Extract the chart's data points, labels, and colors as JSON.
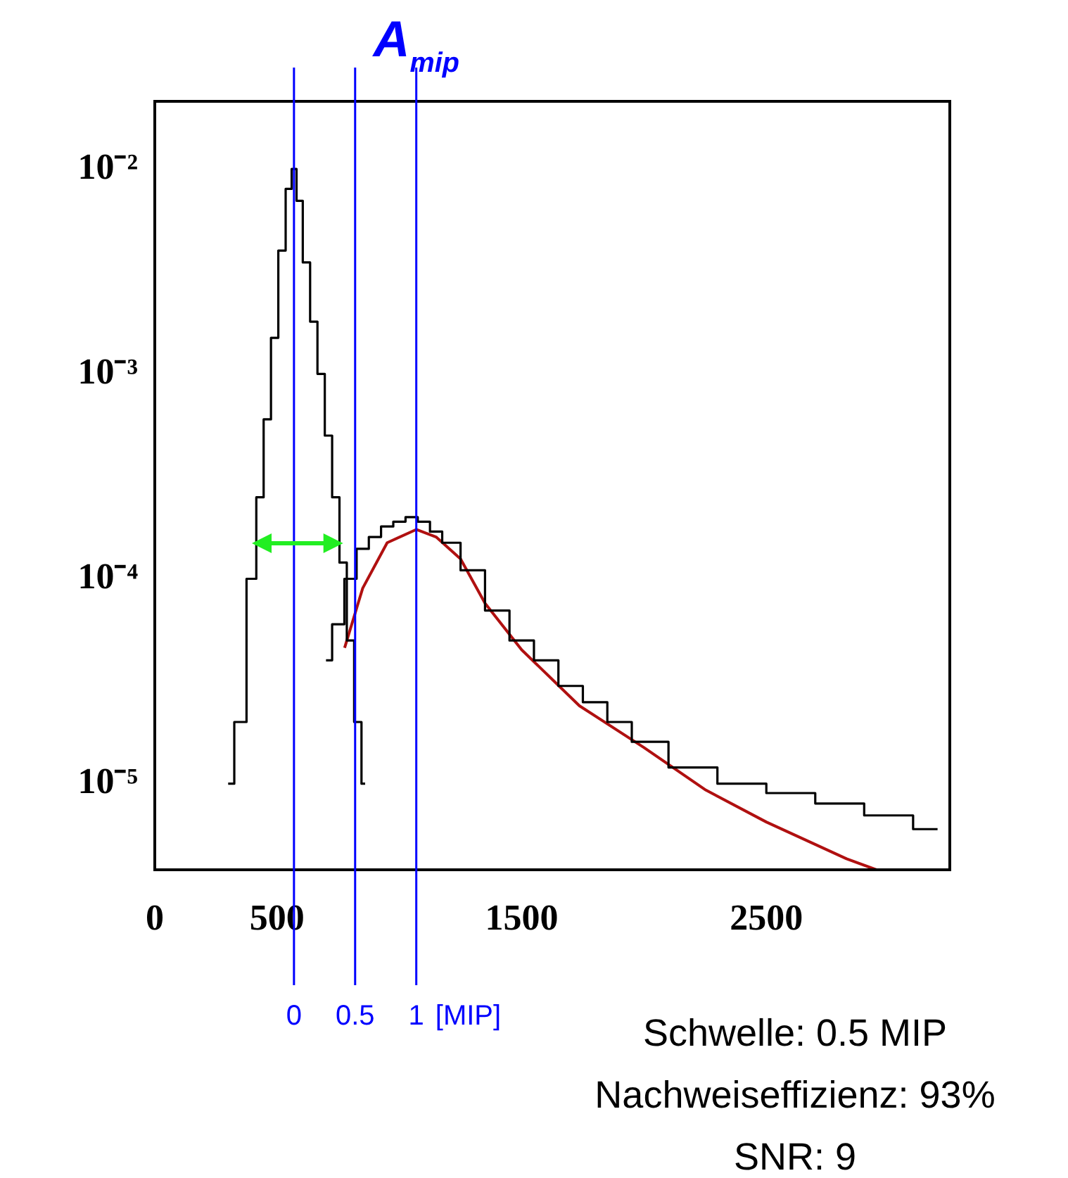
{
  "chart_data": {
    "type": "step",
    "log": "y",
    "grid": false,
    "legend": false,
    "xlim": [
      0,
      3250
    ],
    "xticks": [
      0,
      500,
      1500,
      2500
    ],
    "ylim": [
      3.8e-06,
      0.0214
    ],
    "yticks": [
      {
        "value": 1e-05,
        "label": "10⁻⁵"
      },
      {
        "value": 0.0001,
        "label": "10⁻⁴"
      },
      {
        "value": 0.001,
        "label": "10⁻³"
      },
      {
        "value": 0.01,
        "label": "10⁻²"
      }
    ],
    "series": [
      {
        "color": "#000000",
        "x": [
          300,
          350,
          400,
          430,
          460,
          490,
          520,
          550,
          569,
          590,
          620,
          650,
          680,
          710,
          740,
          770,
          800,
          830,
          860
        ],
        "values": [
          1e-05,
          2e-05,
          0.0001,
          0.00025,
          0.0006,
          0.0015,
          0.004,
          0.008,
          0.01,
          0.007,
          0.0035,
          0.0018,
          0.001,
          0.0005,
          0.00025,
          0.00012,
          5e-05,
          2e-05,
          1e-05
        ]
      },
      {
        "color": "#000000",
        "x": [
          700,
          750,
          800,
          850,
          900,
          950,
          1000,
          1050,
          1100,
          1150,
          1200,
          1300,
          1400,
          1500,
          1600,
          1700,
          1800,
          1900,
          2000,
          2200,
          2400,
          2600,
          2800,
          3000,
          3200
        ],
        "values": [
          4e-05,
          6e-05,
          0.0001,
          0.00014,
          0.00016,
          0.00018,
          0.00019,
          0.0002,
          0.00019,
          0.00017,
          0.00015,
          0.00011,
          7e-05,
          5e-05,
          4e-05,
          3e-05,
          2.5e-05,
          2e-05,
          1.6e-05,
          1.2e-05,
          1e-05,
          9e-06,
          8e-06,
          7e-06,
          6e-06
        ]
      },
      {
        "type": "line",
        "color": "#b01010",
        "x": [
          776,
          850,
          950,
          1069,
          1150,
          1250,
          1350,
          1500,
          1736,
          2000,
          2253,
          2500,
          2828,
          2950
        ],
        "values": [
          4.6e-05,
          9e-05,
          0.00015,
          0.000174,
          0.00016,
          0.000125,
          7.6e-05,
          4.5e-05,
          2.4e-05,
          1.5e-05,
          9.3e-06,
          6.5e-06,
          4.3e-06,
          3.8e-06
        ]
      }
    ],
    "ref_lines": [
      {
        "axis": "x",
        "value": 569,
        "color": "#0000ff"
      },
      {
        "axis": "x",
        "value": 819,
        "color": "#0000ff"
      },
      {
        "axis": "x",
        "value": 1069,
        "color": "#0000ff"
      }
    ],
    "annotations": [
      "A$_{mip}$",
      "0",
      "0.5",
      "1",
      "[MIP]",
      "Schwelle: 0.5 MIP",
      "Nachweiseffizienz: 93%",
      "SNR: 9"
    ]
  }
}
